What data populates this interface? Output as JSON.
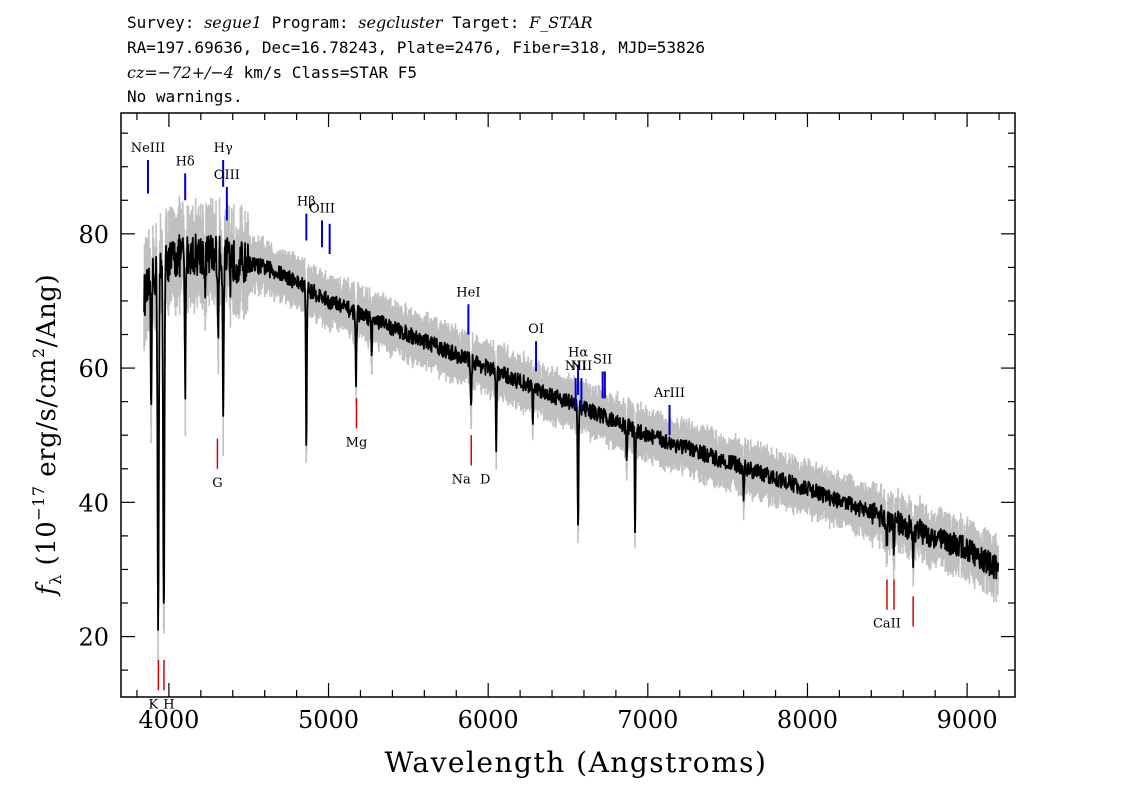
{
  "header": {
    "survey_label": "Survey:",
    "survey": "segue1",
    "program_label": "Program:",
    "program": "segcluster",
    "target_label": "Target:",
    "target": "F_STAR",
    "line2": "RA=197.69636, Dec=16.78243, Plate=2476, Fiber=318, MJD=53826",
    "cz_label": "cz=",
    "cz_value": "−72+/−4",
    "cz_rest": " km/s Class=STAR F5",
    "line4": "No warnings."
  },
  "chart_data": {
    "type": "line",
    "xlabel": "Wavelength (Angstroms)",
    "ylabel_main": "f",
    "ylabel_sub": "λ",
    "ylabel_rest": " (10",
    "ylabel_exp": "−17",
    "ylabel_rest2": " erg/s/cm",
    "ylabel_exp2": "2",
    "ylabel_rest3": "/Ang)",
    "xlim": [
      3700,
      9300
    ],
    "ylim": [
      11,
      98
    ],
    "xticks": [
      4000,
      5000,
      6000,
      7000,
      8000,
      9000
    ],
    "yticks": [
      20,
      40,
      60,
      80
    ],
    "x_minor_step": 200,
    "y_minor_step": 5,
    "grid": false,
    "colors": {
      "flux": "#000000",
      "error": "#c0c0c0",
      "emission": "#0000cc",
      "absorption": "#dd0000"
    },
    "continuum": [
      [
        3850,
        71
      ],
      [
        3920,
        74
      ],
      [
        4000,
        76
      ],
      [
        4100,
        77
      ],
      [
        4250,
        77
      ],
      [
        4400,
        76
      ],
      [
        4600,
        75
      ],
      [
        4750,
        73.5
      ],
      [
        5000,
        70
      ],
      [
        5200,
        68
      ],
      [
        5400,
        66
      ],
      [
        5600,
        64
      ],
      [
        5800,
        62
      ],
      [
        6000,
        60
      ],
      [
        6200,
        58
      ],
      [
        6500,
        55
      ],
      [
        6800,
        52
      ],
      [
        7000,
        50
      ],
      [
        7500,
        46
      ],
      [
        8000,
        42
      ],
      [
        8500,
        37.5
      ],
      [
        9000,
        33
      ],
      [
        9200,
        30
      ]
    ],
    "absorption_features": [
      {
        "x": 3835,
        "depth": 30
      },
      {
        "x": 3889,
        "depth": 22
      },
      {
        "x": 3933,
        "depth": 52
      },
      {
        "x": 3968,
        "depth": 52
      },
      {
        "x": 4102,
        "depth": 22
      },
      {
        "x": 4227,
        "depth": 6
      },
      {
        "x": 4308,
        "depth": 12
      },
      {
        "x": 4340,
        "depth": 22
      },
      {
        "x": 4384,
        "depth": 6
      },
      {
        "x": 4861,
        "depth": 24
      },
      {
        "x": 5172,
        "depth": 10
      },
      {
        "x": 5270,
        "depth": 5
      },
      {
        "x": 5893,
        "depth": 7
      },
      {
        "x": 6050,
        "depth": 11
      },
      {
        "x": 6280,
        "depth": 5
      },
      {
        "x": 6563,
        "depth": 19
      },
      {
        "x": 6867,
        "depth": 5
      },
      {
        "x": 6920,
        "depth": 15
      },
      {
        "x": 7600,
        "depth": 4
      },
      {
        "x": 8498,
        "depth": 4
      },
      {
        "x": 8542,
        "depth": 5
      },
      {
        "x": 8662,
        "depth": 5
      }
    ],
    "emission_lines": [
      {
        "label": "NeIII",
        "x": 3869,
        "y_low": 86,
        "y_high": 91
      },
      {
        "label": "Hδ",
        "x": 4102,
        "y_low": 85,
        "y_high": 89
      },
      {
        "label": "Hγ",
        "x": 4340,
        "y_low": 87,
        "y_high": 91
      },
      {
        "label": "OIII",
        "x": 4363,
        "y_low": 82,
        "y_high": 87
      },
      {
        "label": "Hβ",
        "x": 4861,
        "y_low": 79,
        "y_high": 83
      },
      {
        "label": "OIII",
        "x": 4959,
        "y_low": 78,
        "y_high": 82
      },
      {
        "label": "",
        "x": 5007,
        "y_low": 77,
        "y_high": 81.5
      },
      {
        "label": "HeI",
        "x": 5876,
        "y_low": 65,
        "y_high": 69.5
      },
      {
        "label": "OI",
        "x": 6300,
        "y_low": 59.5,
        "y_high": 64
      },
      {
        "label": "NII",
        "x": 6548,
        "y_low": 54,
        "y_high": 58.5
      },
      {
        "label": "Hα",
        "x": 6563,
        "y_low": 56,
        "y_high": 60.5
      },
      {
        "label": "NII",
        "x": 6584,
        "y_low": 54,
        "y_high": 58.5
      },
      {
        "label": "SII",
        "x": 6717,
        "y_low": 55.5,
        "y_high": 59.5
      },
      {
        "label": "",
        "x": 6731,
        "y_low": 55.5,
        "y_high": 59.5
      },
      {
        "label": "ArIII",
        "x": 7136,
        "y_low": 50,
        "y_high": 54.5
      }
    ],
    "absorption_lines": [
      {
        "label": "K",
        "x": 3934,
        "y_low": 12,
        "y_high": 16.5
      },
      {
        "label": "H",
        "x": 3969,
        "y_low": 12,
        "y_high": 16.5
      },
      {
        "label": "G",
        "x": 4304,
        "y_low": 45,
        "y_high": 49.5
      },
      {
        "label": "Mg",
        "x": 5175,
        "y_low": 51,
        "y_high": 55.5
      },
      {
        "label": "Na",
        "x": 5894,
        "y_low": 45.5,
        "y_high": 50
      },
      {
        "label": "D",
        "x": 5894,
        "y_low": 45.5,
        "y_high": 50
      },
      {
        "label": "CaII",
        "x": 8498,
        "y_low": 24,
        "y_high": 28.5
      },
      {
        "label": "",
        "x": 8542,
        "y_low": 24,
        "y_high": 28.5
      },
      {
        "label": "",
        "x": 8662,
        "y_low": 21.5,
        "y_high": 26
      }
    ]
  }
}
